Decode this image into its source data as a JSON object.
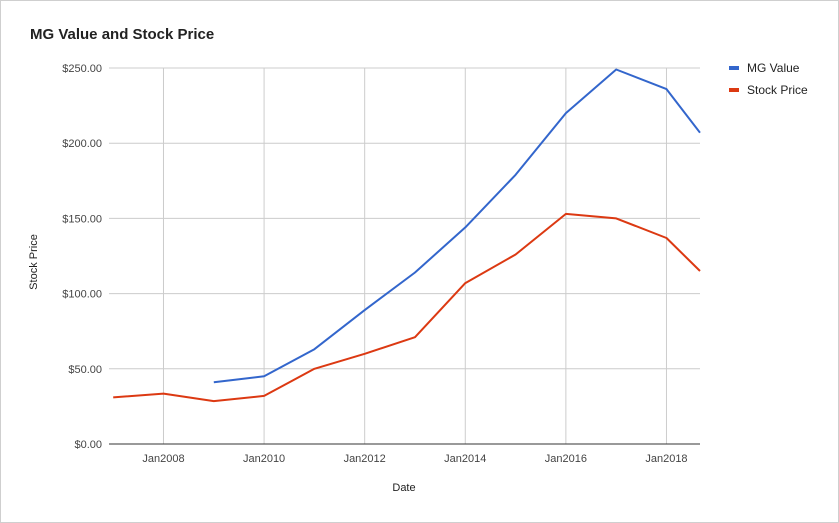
{
  "chart_data": {
    "type": "line",
    "title": "MG Value and Stock Price",
    "xlabel": "Date",
    "ylabel": "Stock Price",
    "x_ticks": [
      "Jan2008",
      "Jan2010",
      "Jan2012",
      "Jan2014",
      "Jan2016",
      "Jan2018"
    ],
    "y_ticks": [
      "$0.00",
      "$50.00",
      "$100.00",
      "$150.00",
      "$200.00",
      "$250.00"
    ],
    "ylim": [
      0,
      250
    ],
    "xlim": [
      "2006-12",
      "2018-09"
    ],
    "grid": true,
    "legend_position": "right",
    "series": [
      {
        "name": "MG Value",
        "color": "#3366cc",
        "points": [
          {
            "x": "2009-01",
            "y": 41
          },
          {
            "x": "2010-01",
            "y": 45
          },
          {
            "x": "2011-01",
            "y": 63
          },
          {
            "x": "2012-01",
            "y": 89
          },
          {
            "x": "2013-01",
            "y": 114
          },
          {
            "x": "2014-01",
            "y": 144
          },
          {
            "x": "2015-01",
            "y": 179
          },
          {
            "x": "2016-01",
            "y": 220
          },
          {
            "x": "2017-01",
            "y": 249
          },
          {
            "x": "2018-01",
            "y": 236
          },
          {
            "x": "2018-09",
            "y": 207
          }
        ]
      },
      {
        "name": "Stock Price",
        "color": "#dc3912",
        "points": [
          {
            "x": "2007-01",
            "y": 31
          },
          {
            "x": "2008-01",
            "y": 33.5
          },
          {
            "x": "2009-01",
            "y": 28.5
          },
          {
            "x": "2010-01",
            "y": 32
          },
          {
            "x": "2011-01",
            "y": 50
          },
          {
            "x": "2012-01",
            "y": 60
          },
          {
            "x": "2013-01",
            "y": 71
          },
          {
            "x": "2014-01",
            "y": 107
          },
          {
            "x": "2015-01",
            "y": 126
          },
          {
            "x": "2016-01",
            "y": 153
          },
          {
            "x": "2017-01",
            "y": 150
          },
          {
            "x": "2018-01",
            "y": 137
          },
          {
            "x": "2018-09",
            "y": 115
          }
        ]
      }
    ]
  }
}
